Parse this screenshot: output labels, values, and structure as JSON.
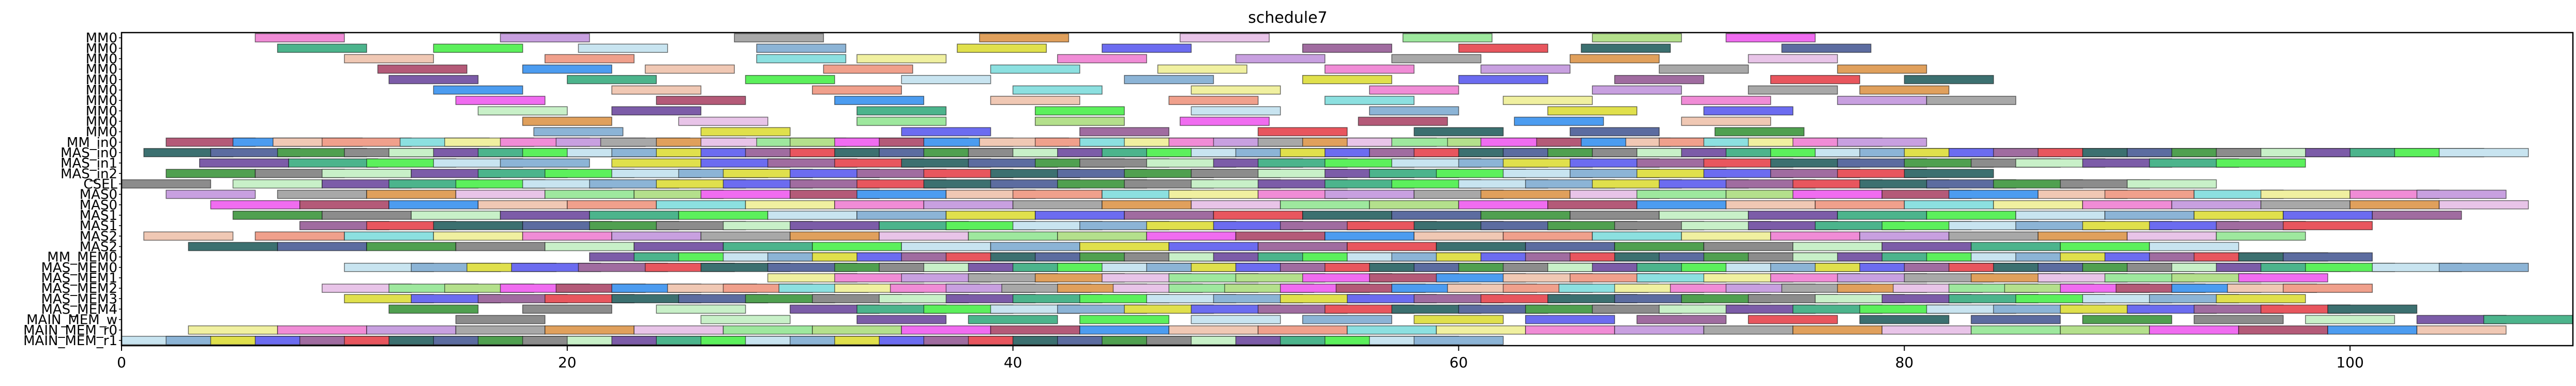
{
  "chart_data": {
    "type": "gantt",
    "title": "schedule7",
    "xlim": [
      0,
      110
    ],
    "x_ticks": [
      0,
      20,
      40,
      60,
      80,
      100
    ],
    "x_tick_labels": [
      "0",
      "20",
      "40",
      "60",
      "80",
      "100"
    ],
    "grid": false,
    "legend": "none",
    "rows": [
      "MM0",
      "MM0",
      "MM0",
      "MM0",
      "MM0",
      "MM0",
      "MM0",
      "MM0",
      "MM0",
      "MM0",
      "MM_in0",
      "MAS_in0",
      "MAS_in1",
      "MAS_in2",
      "CSEL",
      "MAS0",
      "MAS0",
      "MAS1",
      "MAS1",
      "MAS2",
      "MAS2",
      "MM_MEM0",
      "MAS_MEM0",
      "MAS_MEM1",
      "MAS_MEM2",
      "MAS_MEM3",
      "MAS_MEM4",
      "MAIN_MEM_w",
      "MAIN_MEM_r0",
      "MAIN_MEM_r1"
    ],
    "bar_duration": 4,
    "palette": [
      "#f08cd6",
      "#e8565e",
      "#9ee89e",
      "#c8f0c8",
      "#f0c8b4",
      "#8cb4d6",
      "#c8a0e0",
      "#3c7070",
      "#b4e08c",
      "#7c5ca8",
      "#f0a08c",
      "#e0e04c",
      "#a8a8a8",
      "#5c6ca0",
      "#f06cf0",
      "#4cb48c",
      "#8ce0e0",
      "#6c6cf0",
      "#e0a05c",
      "#50a050",
      "#b45a78",
      "#5cf05c",
      "#f0f0a0",
      "#a06ca0",
      "#e8c4e8",
      "#8c8c8c",
      "#4c9cf0",
      "#c8e4f0"
    ],
    "tasks": [
      {
        "row": 0,
        "starts": [
          6,
          17,
          27.5,
          38.5,
          47.5,
          57.5,
          66,
          72
        ]
      },
      {
        "row": 1,
        "starts": [
          7,
          14,
          20.5,
          28.5,
          37.5,
          44,
          53,
          60,
          65.5,
          74.5
        ]
      },
      {
        "row": 2,
        "starts": [
          10,
          19,
          28.5,
          33,
          42,
          50,
          57,
          65,
          73
        ]
      },
      {
        "row": 3,
        "starts": [
          11.5,
          18,
          23.5,
          31.5,
          39,
          46.5,
          54,
          61,
          69,
          77
        ]
      },
      {
        "row": 4,
        "starts": [
          12,
          20,
          28,
          35,
          45,
          53,
          60,
          67,
          74,
          80
        ]
      },
      {
        "row": 5,
        "starts": [
          14,
          22,
          31,
          40,
          48,
          56,
          66,
          73,
          78
        ]
      },
      {
        "row": 6,
        "starts": [
          15,
          24,
          32,
          39,
          47,
          54,
          62,
          70,
          77,
          81
        ]
      },
      {
        "row": 7,
        "starts": [
          16,
          22,
          33,
          41,
          48,
          56,
          64,
          71
        ]
      },
      {
        "row": 8,
        "starts": [
          18,
          25,
          33,
          41,
          47.5,
          55.5,
          62.5,
          70
        ]
      },
      {
        "row": 9,
        "starts": [
          18.5,
          26,
          35,
          43,
          51,
          58,
          65,
          71.5
        ]
      },
      {
        "row": 10,
        "starts": [
          2,
          5,
          6.8,
          9,
          12.5,
          14.5,
          17,
          19.5,
          21.5,
          24,
          26,
          28.5,
          30,
          32,
          34,
          36,
          38.5,
          41,
          43,
          45,
          47,
          49,
          51,
          53,
          55,
          57,
          59.5,
          61,
          63.5,
          65.5,
          67.5,
          69,
          71,
          73,
          75,
          77
        ]
      },
      {
        "row": 11,
        "starts": [
          1,
          4,
          7,
          10,
          12,
          14,
          16,
          18,
          20,
          22,
          24,
          26,
          28,
          30,
          32,
          34,
          36,
          38,
          40,
          42,
          44,
          46,
          48,
          50,
          52,
          54,
          56,
          58,
          60,
          62,
          64,
          66,
          68,
          70,
          72,
          74,
          76,
          78,
          80,
          82,
          84,
          86,
          88,
          90,
          92,
          94,
          96,
          98,
          100,
          102,
          104
        ]
      },
      {
        "row": 12,
        "starts": [
          3.5,
          7.5,
          11,
          14,
          17,
          22,
          26,
          29,
          32,
          35,
          38,
          41,
          43,
          46,
          49,
          51,
          54,
          57,
          60,
          62,
          65,
          68,
          71,
          74,
          77,
          80,
          83,
          85,
          88,
          91,
          94
        ]
      },
      {
        "row": 13,
        "starts": [
          2,
          6,
          9,
          13,
          16,
          19,
          22,
          25,
          27,
          30,
          33,
          36,
          39,
          42,
          45,
          48,
          51,
          54,
          56,
          59,
          62,
          65,
          68,
          71,
          74,
          77,
          80
        ]
      },
      {
        "row": 14,
        "starts": [
          0,
          5,
          9,
          12,
          15,
          18,
          21,
          24,
          27,
          30,
          33,
          36,
          39,
          42,
          45,
          48,
          51,
          54,
          57,
          60,
          63,
          66,
          69,
          72,
          75,
          78,
          81,
          84,
          87,
          90
        ]
      },
      {
        "row": 15,
        "starts": [
          2,
          7,
          11,
          15,
          19,
          23,
          26,
          30,
          33,
          37,
          40,
          44,
          47,
          51,
          54,
          58,
          61,
          65,
          68,
          72,
          75,
          79,
          82,
          86,
          89,
          93,
          96,
          100,
          103
        ]
      },
      {
        "row": 16,
        "starts": [
          4,
          8,
          12,
          16,
          20,
          24,
          28,
          32,
          36,
          40,
          44,
          48,
          52,
          56,
          60,
          64,
          68,
          72,
          76,
          80,
          84,
          88,
          92,
          96,
          100,
          104
        ]
      },
      {
        "row": 17,
        "starts": [
          5,
          9,
          13,
          17,
          21,
          25,
          29,
          33,
          37,
          41,
          45,
          49,
          53,
          57,
          61,
          65,
          69,
          73,
          77,
          81,
          85,
          89,
          93,
          97,
          101
        ]
      },
      {
        "row": 18,
        "starts": [
          8,
          11,
          14,
          18,
          21,
          24,
          27,
          30,
          34,
          37,
          40,
          43,
          46,
          49,
          52,
          55,
          58,
          61,
          64,
          67,
          70,
          73,
          76,
          79,
          82,
          85,
          88,
          91,
          94,
          97
        ]
      },
      {
        "row": 19,
        "starts": [
          1,
          6,
          10,
          14,
          18,
          22,
          26,
          30,
          34,
          38,
          42,
          46,
          50,
          54,
          58,
          62,
          66,
          70,
          74,
          78,
          82,
          86,
          90,
          94
        ]
      },
      {
        "row": 20,
        "starts": [
          3,
          7,
          11,
          15,
          19,
          23,
          27,
          31,
          35,
          39,
          43,
          47,
          51,
          55,
          59,
          63,
          67,
          71,
          75,
          79,
          83,
          87,
          91
        ]
      },
      {
        "row": 21,
        "starts": [
          21,
          23,
          25,
          27,
          29,
          31,
          33,
          35,
          37,
          39,
          41,
          43,
          45,
          47,
          49,
          51,
          53,
          55,
          57,
          59,
          61,
          63,
          65,
          67,
          69,
          71,
          73,
          75,
          77,
          79,
          81,
          83,
          85,
          87,
          89,
          91,
          93,
          95,
          97
        ]
      },
      {
        "row": 22,
        "starts": [
          10,
          13,
          15.5,
          17.5,
          20.5,
          23.5,
          26,
          29,
          32,
          34,
          36,
          38,
          40,
          42,
          44,
          46,
          48,
          50,
          52,
          54,
          56,
          58,
          60,
          62,
          64,
          66,
          68,
          70,
          72,
          74,
          76,
          78,
          80,
          82,
          84,
          86,
          88,
          90,
          92,
          94,
          96,
          98,
          101,
          104
        ]
      },
      {
        "row": 23,
        "starts": [
          29,
          32,
          35,
          38,
          41,
          44,
          47,
          50,
          53,
          56,
          59,
          62,
          65,
          68,
          71,
          74,
          77,
          80,
          83,
          86,
          89,
          92,
          95
        ]
      },
      {
        "row": 24,
        "starts": [
          9,
          12,
          14.5,
          17,
          19.5,
          22,
          24.5,
          27,
          29.5,
          32,
          34.5,
          37,
          39.5,
          42,
          44.5,
          47,
          49.5,
          52,
          54.5,
          57,
          59.5,
          62,
          64.5,
          67,
          69.5,
          72,
          74.5,
          77,
          79.5,
          82,
          84.5,
          87,
          89.5,
          92,
          94.5,
          97
        ]
      },
      {
        "row": 25,
        "starts": [
          10,
          13,
          16,
          19,
          22,
          25,
          28,
          31,
          34,
          37,
          40,
          43,
          46,
          49,
          52,
          55,
          58,
          61,
          64,
          67,
          70,
          73,
          76,
          79,
          82,
          85,
          88,
          91,
          94
        ]
      },
      {
        "row": 26,
        "starts": [
          12,
          18,
          24,
          30,
          33,
          36,
          39,
          42,
          45,
          48,
          51,
          54,
          57,
          60,
          63,
          66,
          69,
          72,
          75,
          78,
          81,
          84,
          87,
          90,
          93,
          96,
          99
        ]
      },
      {
        "row": 27,
        "starts": [
          15,
          26,
          33,
          38,
          43,
          48,
          53,
          58,
          63,
          68,
          73,
          78,
          83,
          88,
          93,
          98,
          103,
          106
        ]
      },
      {
        "row": 28,
        "starts": [
          3,
          7,
          11,
          15,
          19,
          23,
          27,
          31,
          35,
          39,
          43,
          47,
          51,
          55,
          59,
          63,
          67,
          71,
          75,
          79,
          83,
          87,
          91,
          95,
          99,
          103
        ]
      },
      {
        "row": 29,
        "starts": [
          0,
          2,
          4,
          6,
          8,
          10,
          12,
          14,
          16,
          18,
          20,
          22,
          24,
          26,
          28,
          30,
          32,
          34,
          36,
          38,
          40,
          42,
          44,
          46,
          48,
          50,
          52,
          54,
          56,
          58
        ]
      }
    ]
  }
}
